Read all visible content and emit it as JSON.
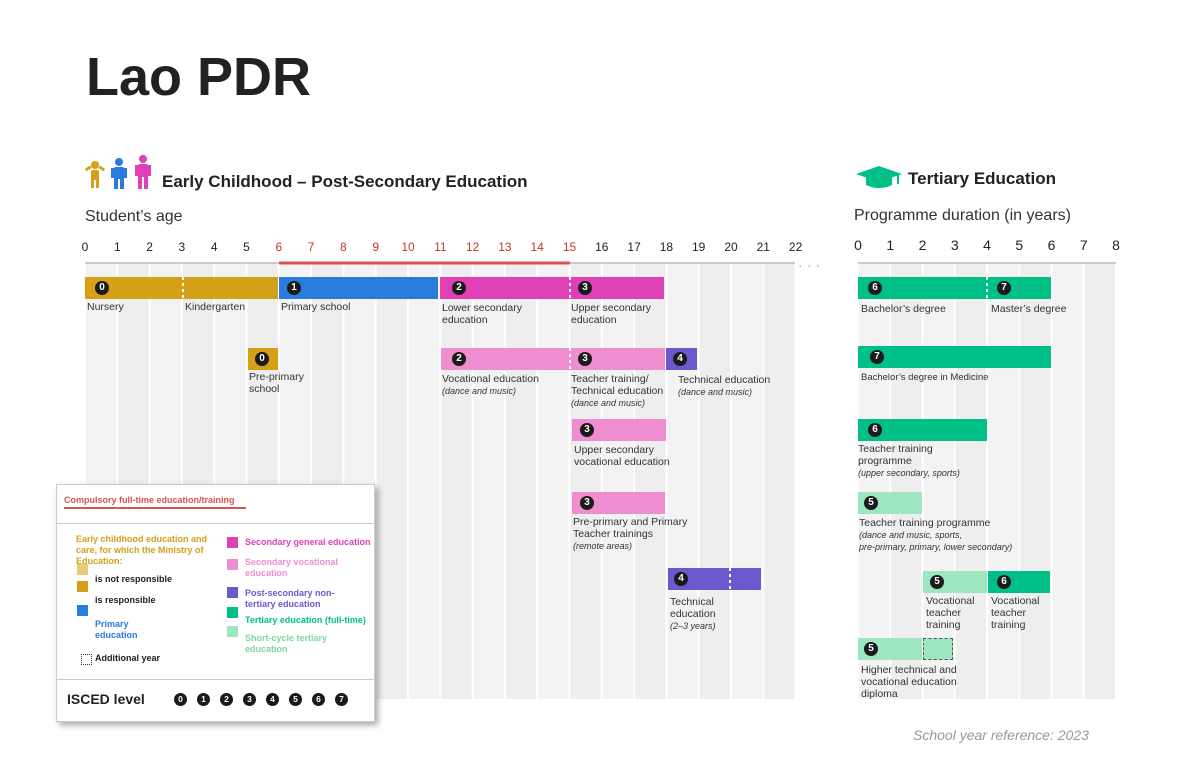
{
  "title": "Lao PDR",
  "left_section": {
    "heading": "Early Childhood – Post-Secondary Education",
    "axis_label": "Student’s age",
    "ticks": [
      "0",
      "1",
      "2",
      "3",
      "4",
      "5",
      "6",
      "7",
      "8",
      "9",
      "10",
      "11",
      "12",
      "13",
      "14",
      "15",
      "16",
      "17",
      "18",
      "19",
      "20",
      "21",
      "22"
    ]
  },
  "right_section": {
    "heading": "Tertiary Education",
    "axis_label": "Programme duration (in years)",
    "ticks": [
      "0",
      "1",
      "2",
      "3",
      "4",
      "5",
      "6",
      "7",
      "8"
    ]
  },
  "colors": {
    "early_childhood": "#D4A017",
    "primary": "#2A7BDE",
    "secondary_general": "#E040B5",
    "secondary_vocational": "#EE8DD0",
    "post_secondary": "#6A5ACD",
    "tertiary": "#00C087",
    "short_cycle": "#9EE6BF",
    "compulsory": "#D9534F"
  },
  "programmes": {
    "nursery": {
      "level": "0",
      "label": "Nursery"
    },
    "kindergarten": {
      "label": "Kindergarten"
    },
    "primary": {
      "level": "1",
      "label": "Primary school"
    },
    "lower_sec": {
      "level": "2",
      "label1": "Lower secondary",
      "label2": "education"
    },
    "upper_sec": {
      "level": "3",
      "label1": "Upper secondary",
      "label2": "education"
    },
    "pre_primary": {
      "level": "0",
      "label1": "Pre-primary",
      "label2": "school"
    },
    "vocational": {
      "level": "2",
      "label1": "Vocational education",
      "note": "(dance and music)"
    },
    "teacher_tech": {
      "level": "3",
      "label1": "Teacher training/",
      "label2": "Technical education",
      "note": "(dance and music)"
    },
    "technical_dm": {
      "level": "4",
      "label1": "Technical education",
      "note": "(dance and music)"
    },
    "upper_voc": {
      "level": "3",
      "label1": "Upper secondary",
      "label2": "vocational education"
    },
    "preprim_teacher": {
      "level": "3",
      "label1": "Pre-primary and Primary",
      "label2": "Teacher trainings",
      "note": "(remote areas)"
    },
    "technical": {
      "level": "4",
      "label1": "Technical",
      "label2": "education",
      "note": "(2–3 years)"
    },
    "bachelor": {
      "level": "6",
      "label": "Bachelor’s degree"
    },
    "master": {
      "level": "7",
      "label": "Master’s degree"
    },
    "bach_med": {
      "level": "7",
      "label": "Bachelor’s degree in Medicine"
    },
    "teacher_prog": {
      "level": "6",
      "label1": "Teacher training",
      "label2": "programme",
      "note": "(upper secondary, sports)"
    },
    "teacher_prog2": {
      "level": "5",
      "label1": "Teacher training programme",
      "note1": "(dance and music, sports,",
      "note2": "pre-primary, primary, lower secondary)"
    },
    "voc_teacher5": {
      "level": "5",
      "label1": "Vocational",
      "label2": "teacher",
      "label3": "training"
    },
    "voc_teacher6": {
      "level": "6",
      "label1": "Vocational",
      "label2": "teacher",
      "label3": "training"
    },
    "higher_tech": {
      "level": "5",
      "label1": "Higher technical and",
      "label2": "vocational education",
      "label3": "diploma"
    }
  },
  "legend": {
    "compulsory": "Compulsory full-time education/training",
    "ecce_title": "Early childhood education and care, for which the  Ministry of Education:",
    "not_resp": "is not responsible",
    "is_resp": "is responsible",
    "primary": "Primary education",
    "sec_gen": "Secondary general education",
    "sec_voc": "Secondary vocational education",
    "post_sec": "Post-secondary non-tertiary education",
    "tertiary": "Tertiary education (full-time)",
    "short_cycle": "Short-cycle tertiary education",
    "additional": "Additional year",
    "isced": "ISCED level",
    "levels": [
      "0",
      "1",
      "2",
      "3",
      "4",
      "5",
      "6",
      "7"
    ]
  },
  "footer": "School year reference: 2023"
}
